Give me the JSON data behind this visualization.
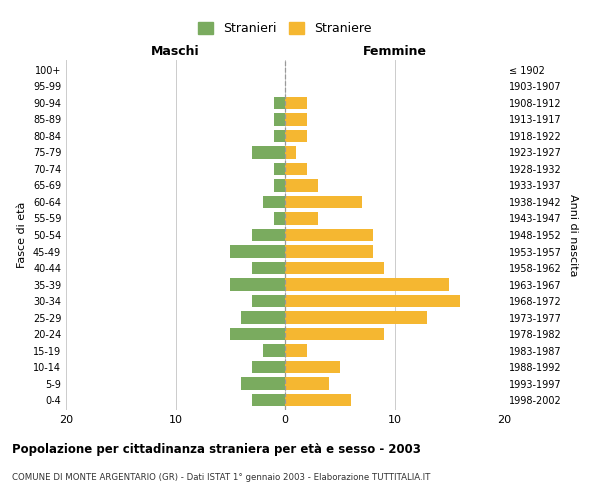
{
  "age_groups": [
    "0-4",
    "5-9",
    "10-14",
    "15-19",
    "20-24",
    "25-29",
    "30-34",
    "35-39",
    "40-44",
    "45-49",
    "50-54",
    "55-59",
    "60-64",
    "65-69",
    "70-74",
    "75-79",
    "80-84",
    "85-89",
    "90-94",
    "95-99",
    "100+"
  ],
  "birth_years": [
    "1998-2002",
    "1993-1997",
    "1988-1992",
    "1983-1987",
    "1978-1982",
    "1973-1977",
    "1968-1972",
    "1963-1967",
    "1958-1962",
    "1953-1957",
    "1948-1952",
    "1943-1947",
    "1938-1942",
    "1933-1937",
    "1928-1932",
    "1923-1927",
    "1918-1922",
    "1913-1917",
    "1908-1912",
    "1903-1907",
    "≤ 1902"
  ],
  "maschi": [
    3,
    4,
    3,
    2,
    5,
    4,
    3,
    5,
    3,
    5,
    3,
    1,
    2,
    1,
    1,
    3,
    1,
    1,
    1,
    0,
    0
  ],
  "femmine": [
    6,
    4,
    5,
    2,
    9,
    13,
    16,
    15,
    9,
    8,
    8,
    3,
    7,
    3,
    2,
    1,
    2,
    2,
    2,
    0,
    0
  ],
  "color_maschi": "#7aab5f",
  "color_femmine": "#f5b731",
  "title": "Popolazione per cittadinanza straniera per età e sesso - 2003",
  "subtitle": "COMUNE DI MONTE ARGENTARIO (GR) - Dati ISTAT 1° gennaio 2003 - Elaborazione TUTTITALIA.IT",
  "legend_maschi": "Stranieri",
  "legend_femmine": "Straniere",
  "xlabel_left": "Maschi",
  "xlabel_right": "Femmine",
  "ylabel_left": "Fasce di età",
  "ylabel_right": "Anni di nascita",
  "xlim": 20,
  "background_color": "#ffffff",
  "grid_color": "#cccccc"
}
